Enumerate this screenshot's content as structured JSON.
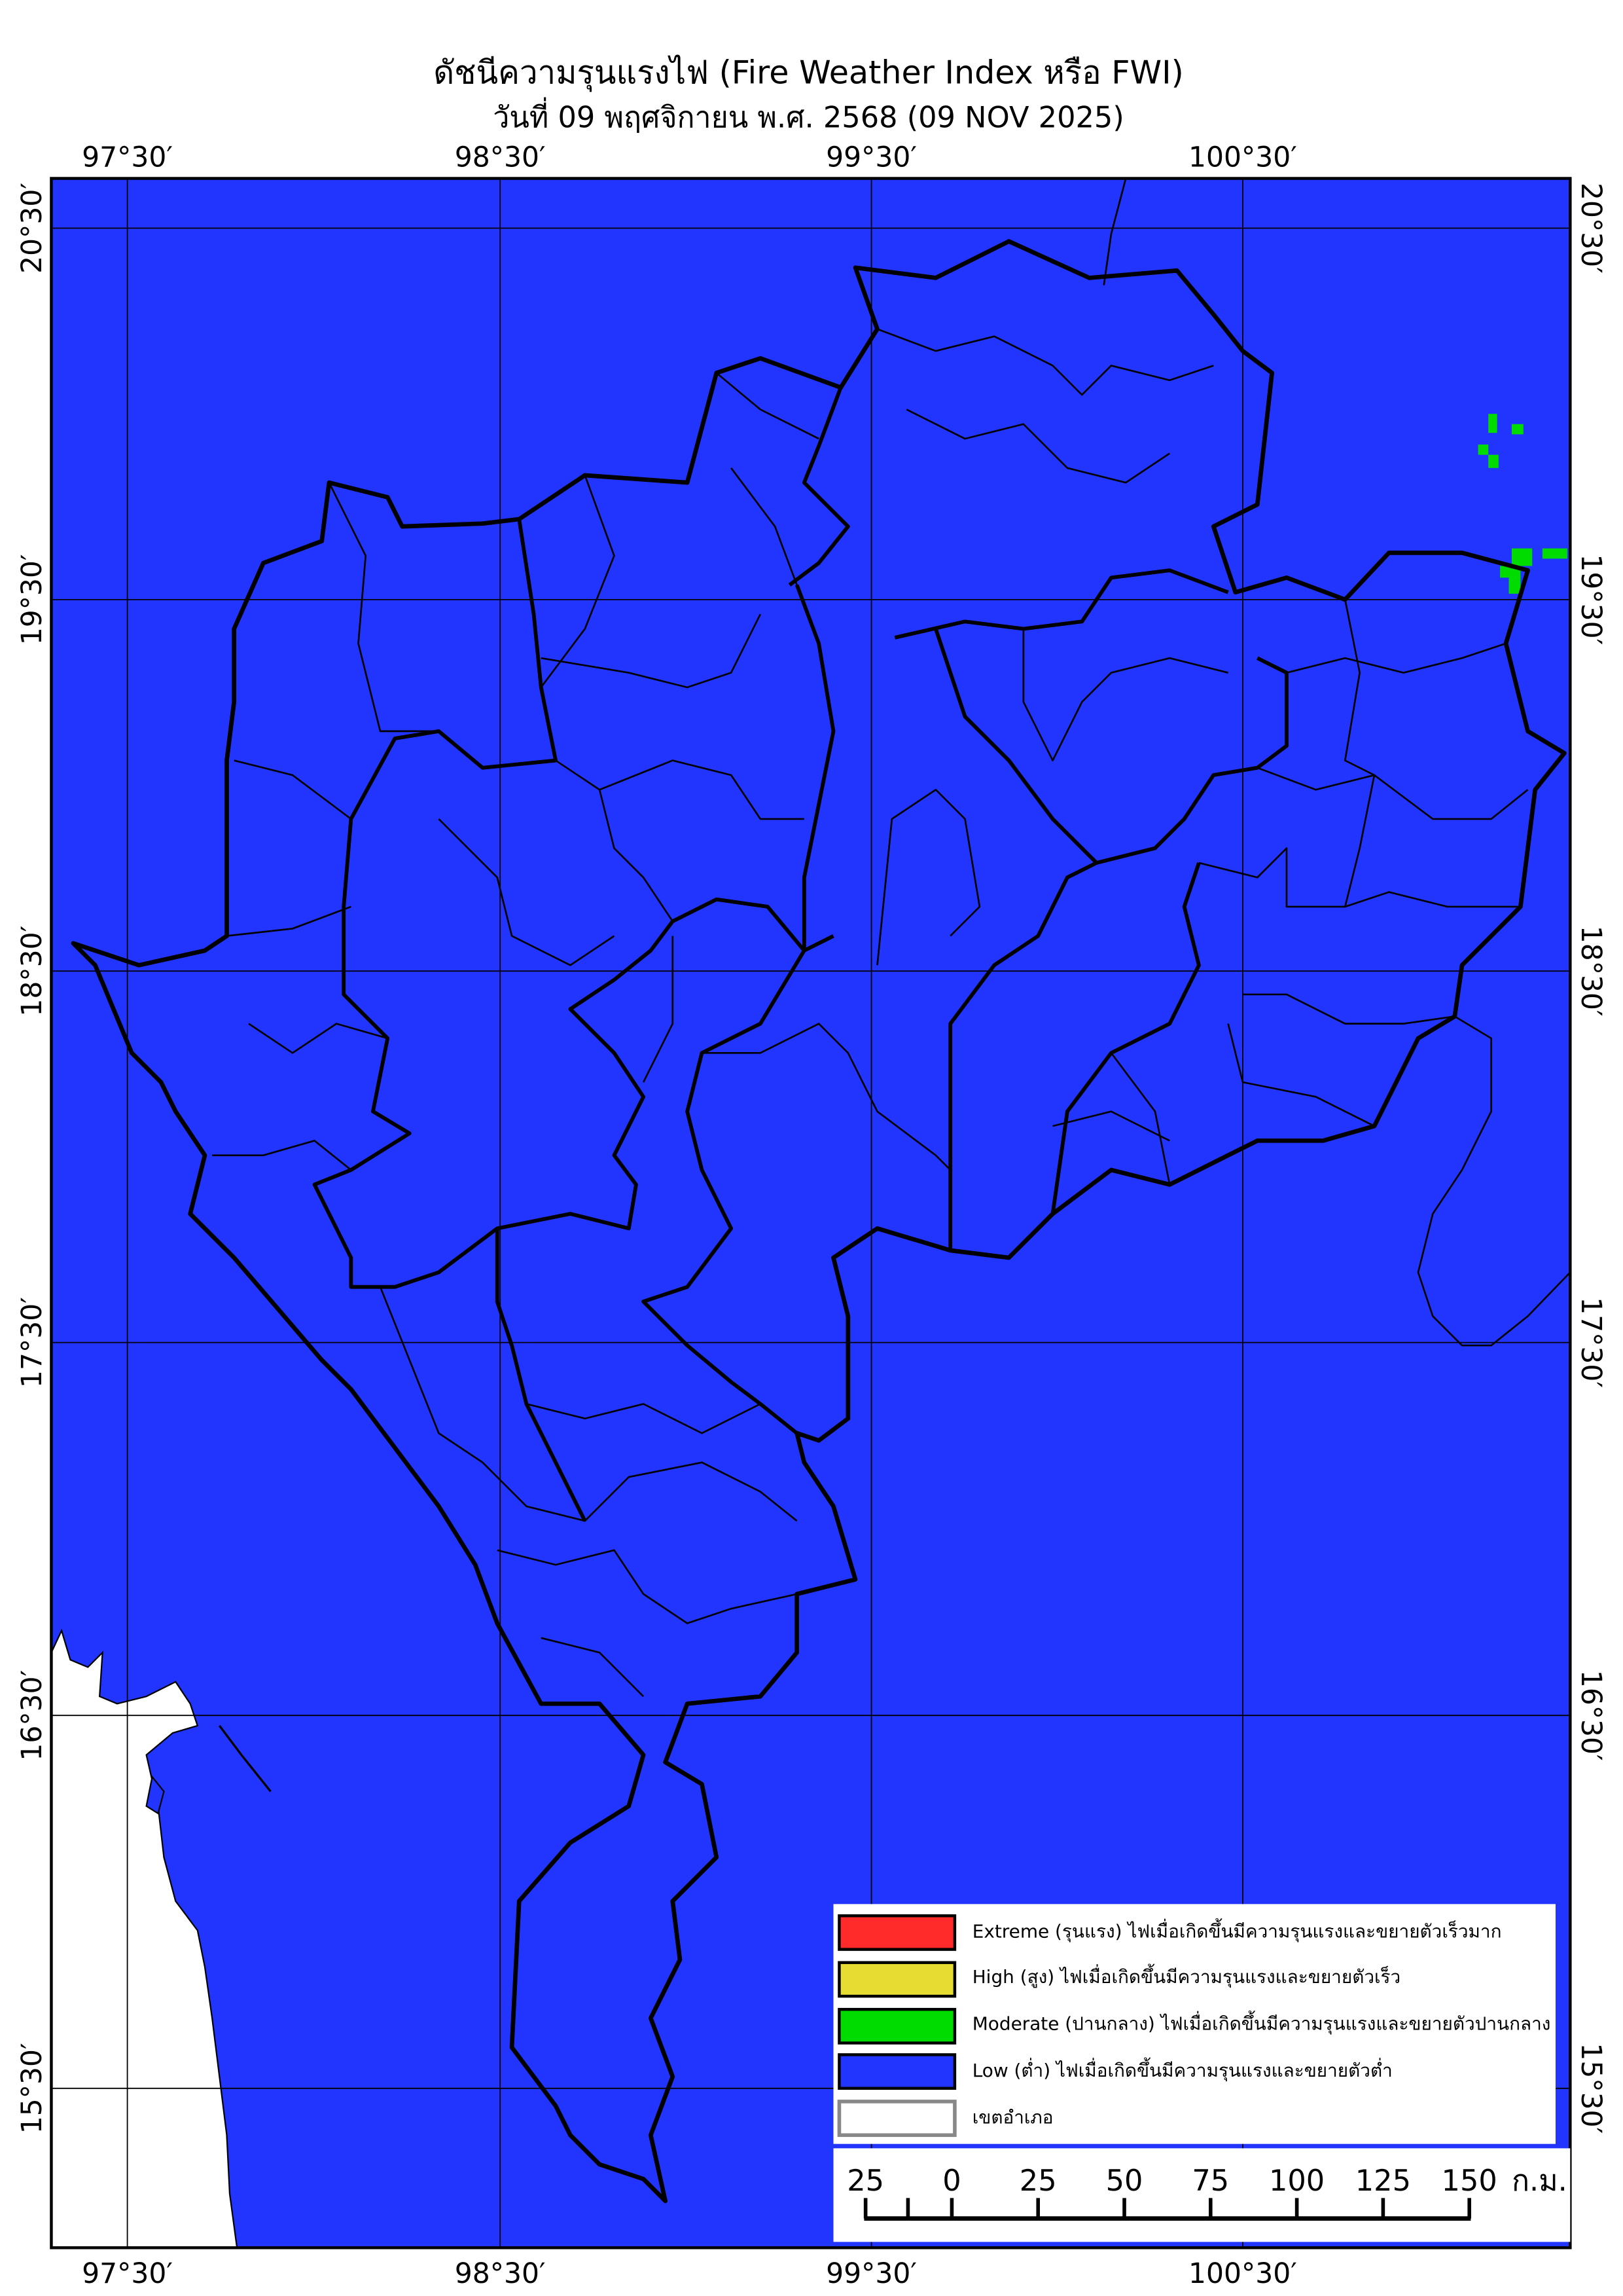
{
  "title": "ดัชนีความรุนแรงไฟ (Fire Weather Index หรือ FWI)",
  "subtitle": "วันที่ 09 พฤศจิกายน พ.ศ. 2568 (09 NOV 2025)",
  "longitude_labels": [
    "97°30′",
    "98°30′",
    "99°30′",
    "100°30′"
  ],
  "latitude_labels": [
    "20°30′",
    "19°30′",
    "18°30′",
    "17°30′",
    "16°30′",
    "15°30′"
  ],
  "colors": {
    "extreme": "#FF2A2A",
    "high": "#E6DC32",
    "moderate": "#00DC00",
    "low": "#2235FF",
    "district": "#888888"
  },
  "legend": [
    {
      "key": "extreme",
      "label": "Extreme (รุนแรง) ไฟเมื่อเกิดขึ้นมีความรุนแรงและขยายตัวเร็วมาก"
    },
    {
      "key": "high",
      "label": "High (สูง) ไฟเมื่อเกิดขึ้นมีความรุนแรงและขยายตัวเร็ว"
    },
    {
      "key": "moderate",
      "label": "Moderate (ปานกลาง) ไฟเมื่อเกิดขึ้นมีความรุนแรงและขยายตัวปานกลาง"
    },
    {
      "key": "low",
      "label": "Low (ต่ำ) ไฟเมื่อเกิดขึ้นมีความรุนแรงและขยายตัวต่ำ"
    },
    {
      "key": "district",
      "label": "เขตอำเภอ"
    }
  ],
  "scale_bar": {
    "ticks": [
      "25",
      "0",
      "25",
      "50",
      "75",
      "100",
      "125",
      "150"
    ],
    "unit": "ก.ม."
  }
}
